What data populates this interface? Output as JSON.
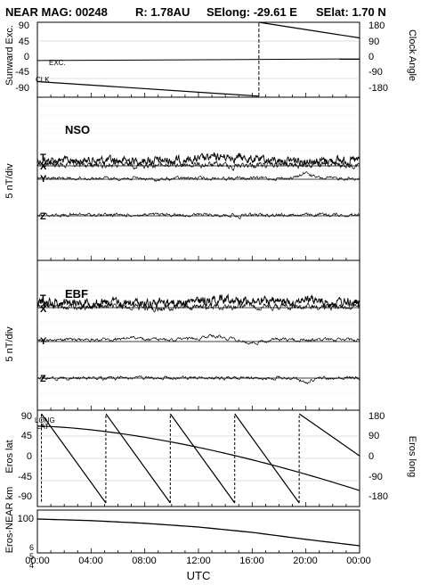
{
  "header": {
    "mission": "NEAR MAG: 00248",
    "r": "R: 1.78AU",
    "selong": "SElong:  -29.61 E",
    "selat": "SElat:    1.70 N"
  },
  "colors": {
    "ink": "#000000",
    "grid": "#bfbfbf",
    "background": "#ffffff"
  },
  "chart_data": [
    {
      "type": "line",
      "panel": "sunward-clock",
      "ylabel_left": "Sunward Exc.",
      "ylabel_right": "Clock Angle",
      "yticks_left": [
        "90",
        "45",
        "0",
        "-45",
        "-90"
      ],
      "yticks_right": [
        "180",
        "90",
        "0",
        "-90",
        "-180"
      ],
      "ylim_left": [
        -90,
        90
      ],
      "ylim_right": [
        -180,
        180
      ],
      "grid": true,
      "series": [
        {
          "name": "EXC.",
          "axis": "left",
          "x_hours": [
            0,
            24
          ],
          "y": [
            -2,
            2
          ]
        },
        {
          "name": "CLK",
          "axis": "right",
          "x_hours": [
            0,
            16.5,
            16.5,
            24
          ],
          "y": [
            -105,
            -175,
            180,
            105
          ]
        }
      ]
    },
    {
      "type": "line",
      "panel": "nso",
      "label": "NSO",
      "ylabel": "5 nT/div",
      "series": [
        {
          "name": "T",
          "offset_div": 0
        },
        {
          "name": "X",
          "offset_div": 0
        },
        {
          "name": "Y",
          "offset_div": -1
        },
        {
          "name": "Z",
          "offset_div": -2
        }
      ]
    },
    {
      "type": "line",
      "panel": "ebf",
      "label": "EBF",
      "ylabel": "5 nT/div",
      "series": [
        {
          "name": "T",
          "offset_div": 0
        },
        {
          "name": "X",
          "offset_div": 0
        },
        {
          "name": "Y",
          "offset_div": -1
        },
        {
          "name": "Z",
          "offset_div": -2
        }
      ]
    },
    {
      "type": "line",
      "panel": "eros-latlong",
      "ylabel_left": "Eros lat",
      "ylabel_right": "Eros long",
      "yticks_left": [
        "90",
        "45",
        "0",
        "-45",
        "-90"
      ],
      "yticks_right": [
        "180",
        "90",
        "0",
        "-90",
        "-180"
      ],
      "ylim_left": [
        -90,
        90
      ],
      "ylim_right": [
        -180,
        180
      ],
      "grid": true,
      "series": [
        {
          "name": "LAT",
          "axis": "left",
          "x_hours": [
            0,
            24
          ],
          "y": [
            65,
            -65
          ]
        },
        {
          "name": "LONG",
          "axis": "right",
          "x_hours": [
            0.3,
            0.3,
            5.1,
            5.1,
            9.9,
            9.9,
            14.7,
            14.7,
            19.5,
            19.5,
            24
          ],
          "y": [
            -175,
            180,
            -180,
            180,
            -180,
            180,
            -180,
            180,
            -180,
            180,
            10
          ]
        }
      ]
    },
    {
      "type": "line",
      "panel": "eros-near-range",
      "ylabel": "Eros-NEAR km",
      "yticks": [
        "100",
        "6",
        "5",
        "4"
      ],
      "series": [
        {
          "name": "range",
          "x_hours": [
            0,
            4,
            8,
            12,
            16,
            20,
            24
          ],
          "y": [
            100,
            97,
            92,
            85,
            75,
            62,
            50
          ]
        }
      ]
    }
  ],
  "xaxis": {
    "title": "UTC",
    "ticks": [
      "00:00",
      "04:00",
      "08:00",
      "12:00",
      "16:00",
      "20:00",
      "00:00"
    ]
  }
}
